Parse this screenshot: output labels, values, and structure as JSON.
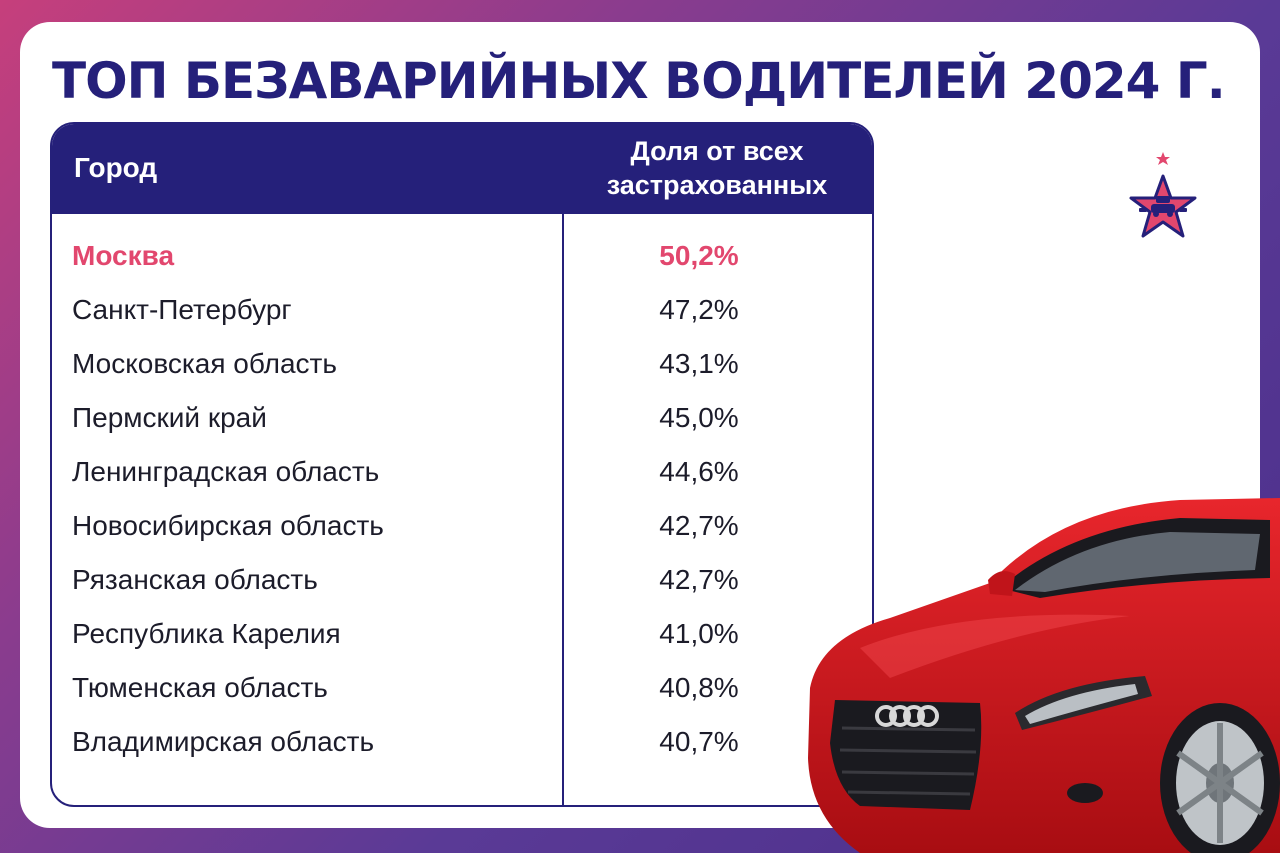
{
  "title": "ТОП БЕЗАВАРИЙНЫХ ВОДИТЕЛЕЙ 2024 Г.",
  "table": {
    "header_city": "Город",
    "header_share_line1": "Доля от всех",
    "header_share_line2": "застрахованных",
    "rows": [
      {
        "city": "Москва",
        "share": "50,2%",
        "highlight": true
      },
      {
        "city": "Санкт-Петербург",
        "share": "47,2%"
      },
      {
        "city": "Московская область",
        "share": "43,1%"
      },
      {
        "city": "Пермский край",
        "share": "45,0%"
      },
      {
        "city": "Ленинградская область",
        "share": "44,6%"
      },
      {
        "city": "Новосибирская область",
        "share": "42,7%"
      },
      {
        "city": "Рязанская область",
        "share": "42,7%"
      },
      {
        "city": "Республика Карелия",
        "share": "41,0%"
      },
      {
        "city": "Тюменская область",
        "share": "40,8%"
      },
      {
        "city": "Владимирская область",
        "share": "40,7%"
      }
    ]
  },
  "colors": {
    "navy": "#25207a",
    "highlight": "#e2476e",
    "car_red": "#d8151c"
  },
  "icons": {
    "logo": "star-logo-icon",
    "car": "red-car-image"
  }
}
